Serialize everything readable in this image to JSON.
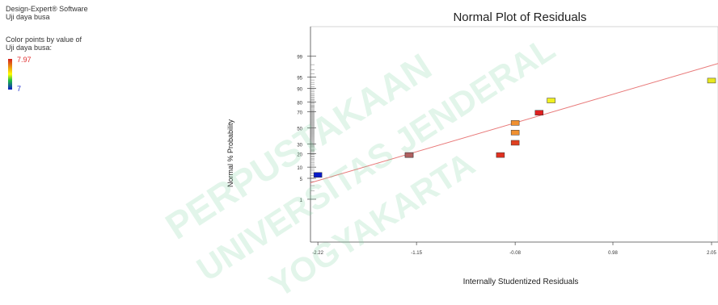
{
  "software": {
    "line1": "Design-Expert® Software",
    "line2": "Uji daya busa"
  },
  "color_legend": {
    "line1": "Color points by value of",
    "line2": "Uji daya busa:",
    "max_label": "7.97",
    "min_label": "7",
    "high_color": "#d42020",
    "mid_color": "#ffff00",
    "low_color": "#0a1cc8"
  },
  "watermark": {
    "lines": [
      "PERPUSTAKAAN",
      "UNIVERSITAS JENDERAL",
      "YOGYAKARTA"
    ],
    "color": "#7dd0a0"
  },
  "chart_data": {
    "type": "scatter",
    "title": "Normal Plot of Residuals",
    "xlabel": "Internally Studentized Residuals",
    "ylabel": "Normal % Probability",
    "x_ticks": [
      -2.22,
      -1.15,
      -0.08,
      0.98,
      2.05
    ],
    "x_tick_labels": [
      "-2.22",
      "-1.15",
      "-0.08",
      "0.98",
      "2.05"
    ],
    "y_ticks": [
      1,
      5,
      10,
      20,
      30,
      50,
      70,
      80,
      90,
      95,
      99
    ],
    "y_tick_labels": [
      "1",
      "5",
      "10",
      "20",
      "30",
      "50",
      "70",
      "80",
      "90",
      "95",
      "99"
    ],
    "xlim": [
      -2.3,
      2.12
    ],
    "y_scale": "normal probability",
    "line_color": "#e87878",
    "points": [
      {
        "x": -2.22,
        "y": 6.25,
        "color": "#0a1cc8"
      },
      {
        "x": -1.23,
        "y": 18.75,
        "color": "#b06060"
      },
      {
        "x": -1.23,
        "y": 18.75,
        "color": "#b06060"
      },
      {
        "x": -0.24,
        "y": 18.75,
        "color": "#e03020"
      },
      {
        "x": -0.08,
        "y": 31.25,
        "color": "#e04020"
      },
      {
        "x": -0.08,
        "y": 43.75,
        "color": "#f09030"
      },
      {
        "x": -0.08,
        "y": 56.25,
        "color": "#f09030"
      },
      {
        "x": 0.18,
        "y": 68.75,
        "color": "#e02020"
      },
      {
        "x": 0.31,
        "y": 81.25,
        "color": "#f0f020"
      },
      {
        "x": 2.05,
        "y": 93.75,
        "color": "#e8e820"
      }
    ]
  }
}
